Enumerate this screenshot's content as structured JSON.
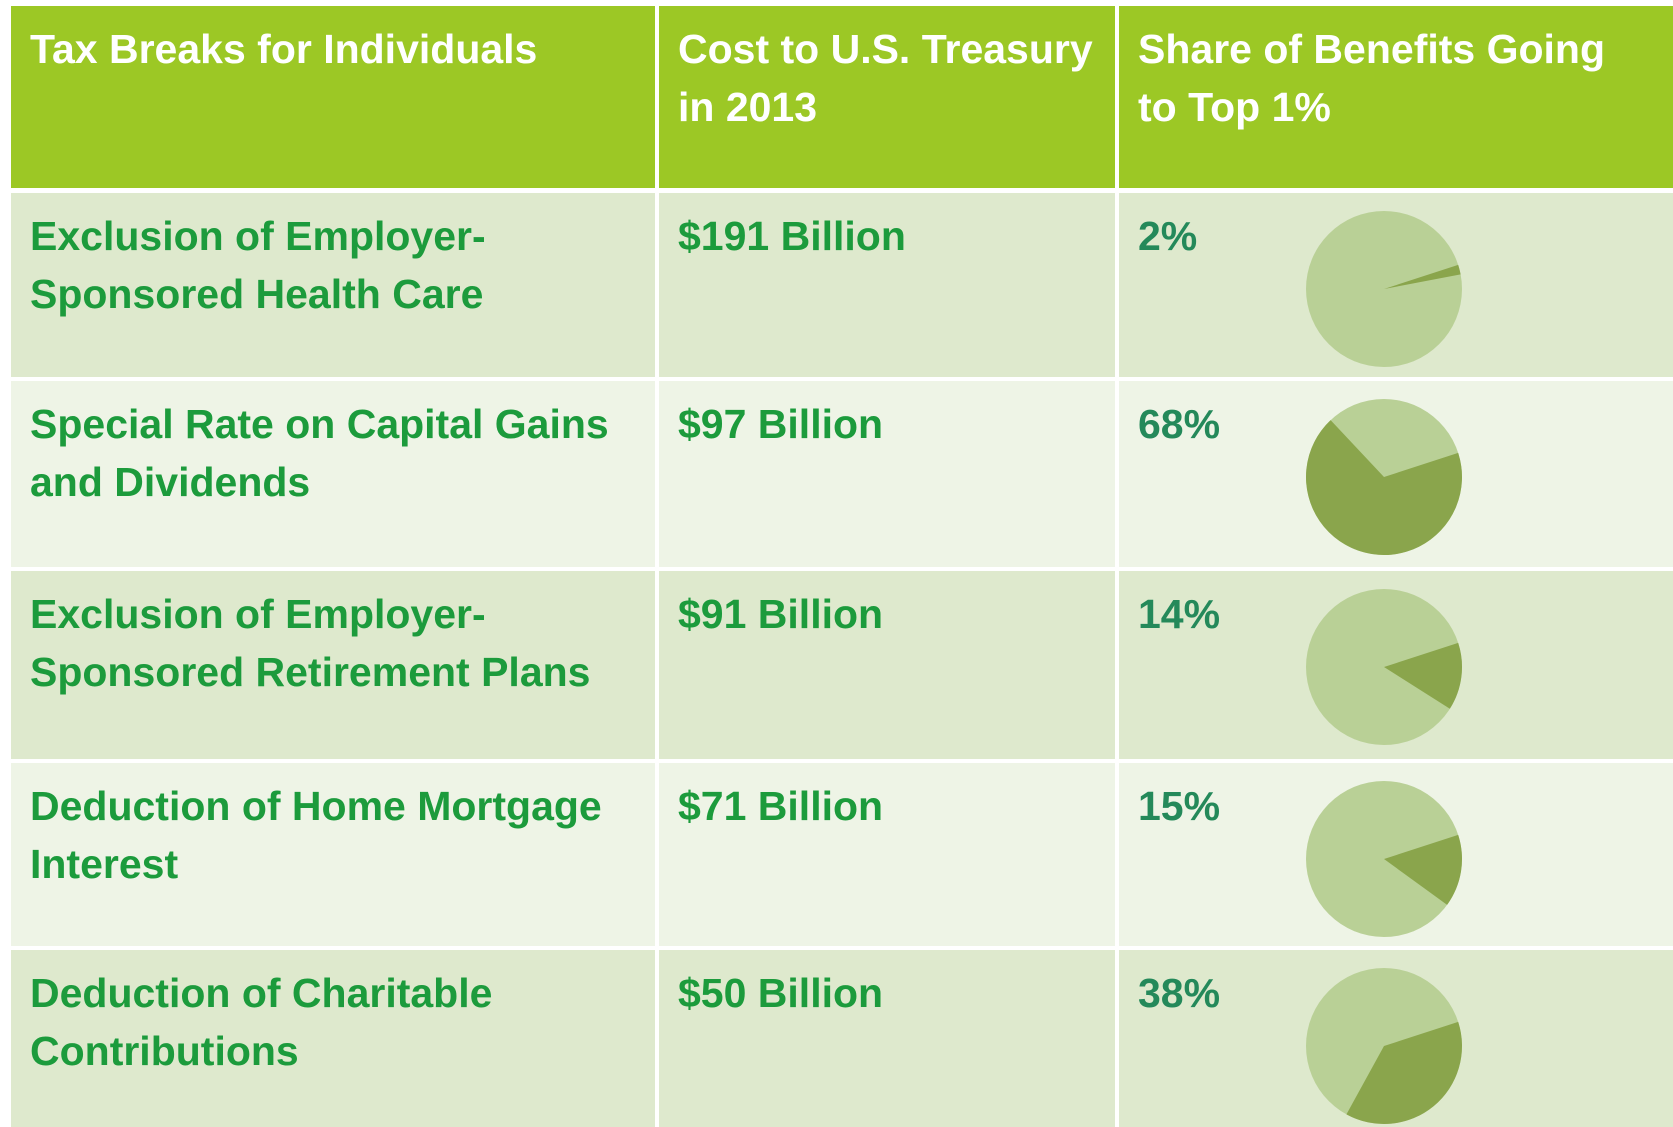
{
  "table": {
    "header": [
      "Tax Breaks for Individuals",
      "Cost to U.S. Treasury in 2013",
      "Share of Benefits Going to Top 1%"
    ],
    "rows": [
      {
        "name": "Exclusion of Employer-Sponsored Health Care",
        "cost": "$191 Billion",
        "share": {
          "value": 2,
          "label": "2%"
        }
      },
      {
        "name": "Special Rate on Capital Gains and Dividends",
        "cost": "$97 Billion",
        "share": {
          "value": 68,
          "label": "68%"
        }
      },
      {
        "name": "Exclusion of Employer-Sponsored Retirement Plans",
        "cost": "$91 Billion",
        "share": {
          "value": 14,
          "label": "14%"
        }
      },
      {
        "name": "Deduction of Home Mortgage Interest",
        "cost": "$71 Billion",
        "share": {
          "value": 15,
          "label": "15%"
        }
      },
      {
        "name": "Deduction of Charitable Contributions",
        "cost": "$50 Billion",
        "share": {
          "value": 38,
          "label": "38%"
        }
      }
    ]
  }
}
